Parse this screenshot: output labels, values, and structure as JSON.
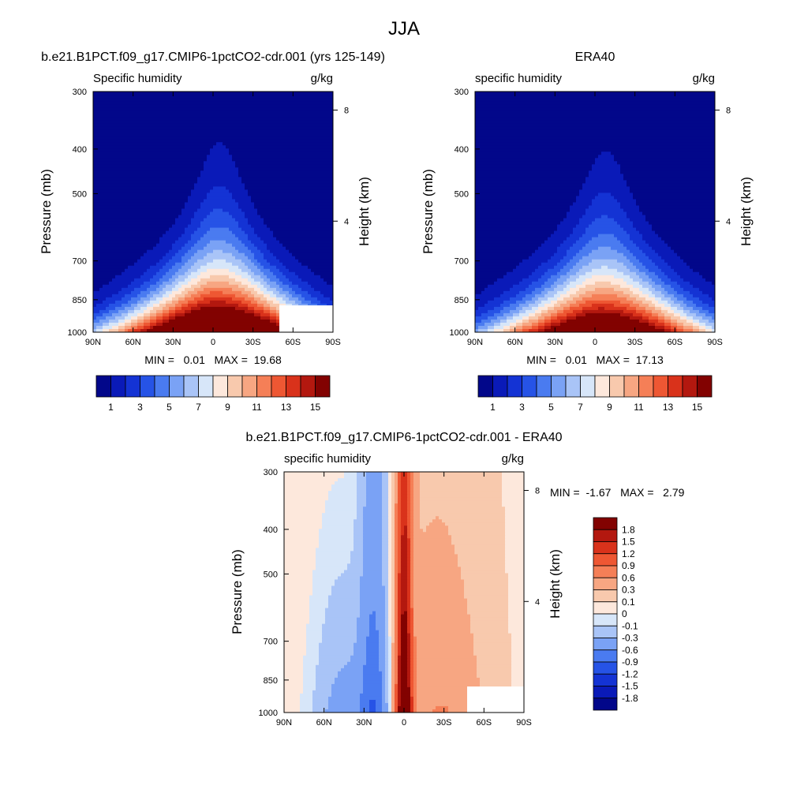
{
  "title": "JJA",
  "palette": {
    "abs": [
      "#02078a",
      "#0a1ab8",
      "#1433d4",
      "#2653e6",
      "#4a7bf0",
      "#7aa2f5",
      "#a9c4f7",
      "#d7e6f9",
      "#fde8dc",
      "#f8c9ad",
      "#f7a682",
      "#f57f57",
      "#ee5733",
      "#d9321b",
      "#b3180f",
      "#820201"
    ],
    "diff": [
      "#02078a",
      "#0a1ab8",
      "#1433d4",
      "#2653e6",
      "#4a7bf0",
      "#7aa2f5",
      "#a9c4f7",
      "#d7e6f9",
      "#fde8dc",
      "#f8c9ad",
      "#f7a682",
      "#f57f57",
      "#ee5733",
      "#d9321b",
      "#b3180f",
      "#820201"
    ]
  },
  "colorbar_abs": {
    "ticks": [
      "1",
      "3",
      "5",
      "7",
      "9",
      "11",
      "13",
      "15"
    ]
  },
  "colorbar_diff": {
    "levels": [
      "1.8",
      "1.5",
      "1.2",
      "0.9",
      "0.6",
      "0.3",
      "0.1",
      "0",
      "-0.1",
      "-0.3",
      "-0.6",
      "-0.9",
      "-1.2",
      "-1.5",
      "-1.8"
    ]
  },
  "chart_data": [
    {
      "type": "heatmap",
      "title": "b.e21.B1PCT.f09_g17.CMIP6-1pctCO2-cdr.001 (yrs 125-149)",
      "subtitle_left": "Specific humidity",
      "subtitle_right": "g/kg",
      "xlabel": "",
      "ylabel": "Pressure (mb)",
      "ylabel_right": "Height (km)",
      "x_ticks": [
        "90N",
        "60N",
        "30N",
        "0",
        "30S",
        "60S",
        "90S"
      ],
      "y_ticks": [
        "300",
        "400",
        "500",
        "700",
        "850",
        "1000"
      ],
      "right_ticks": [
        "8",
        "4"
      ],
      "stats_text": "MIN =   0.01   MAX =  19.68",
      "min": 0.01,
      "max": 19.68,
      "peak_lat": -5,
      "peak_p": 1000
    },
    {
      "type": "heatmap",
      "title": "ERA40",
      "subtitle_left": "specific humidity",
      "subtitle_right": "g/kg",
      "xlabel": "",
      "ylabel": "Pressure (mb)",
      "ylabel_right": "Height (km)",
      "x_ticks": [
        "90N",
        "60N",
        "30N",
        "0",
        "30S",
        "60S",
        "90S"
      ],
      "y_ticks": [
        "300",
        "400",
        "500",
        "700",
        "850",
        "1000"
      ],
      "right_ticks": [
        "8",
        "4"
      ],
      "stats_text": "MIN =   0.01   MAX =  17.13",
      "min": 0.01,
      "max": 17.13,
      "peak_lat": -8,
      "peak_p": 1000
    },
    {
      "type": "heatmap",
      "title": "b.e21.B1PCT.f09_g17.CMIP6-1pctCO2-cdr.001 - ERA40",
      "subtitle_left": "specific humidity",
      "subtitle_right": "g/kg",
      "xlabel": "",
      "ylabel": "Pressure (mb)",
      "ylabel_right": "Height (km)",
      "x_ticks": [
        "90N",
        "60N",
        "30N",
        "0",
        "30S",
        "60S",
        "90S"
      ],
      "y_ticks": [
        "300",
        "400",
        "500",
        "700",
        "850",
        "1000"
      ],
      "right_ticks": [
        "8",
        "4"
      ],
      "stats_text": "MIN =  -1.67   MAX =   2.79",
      "min": -1.67,
      "max": 2.79
    }
  ]
}
